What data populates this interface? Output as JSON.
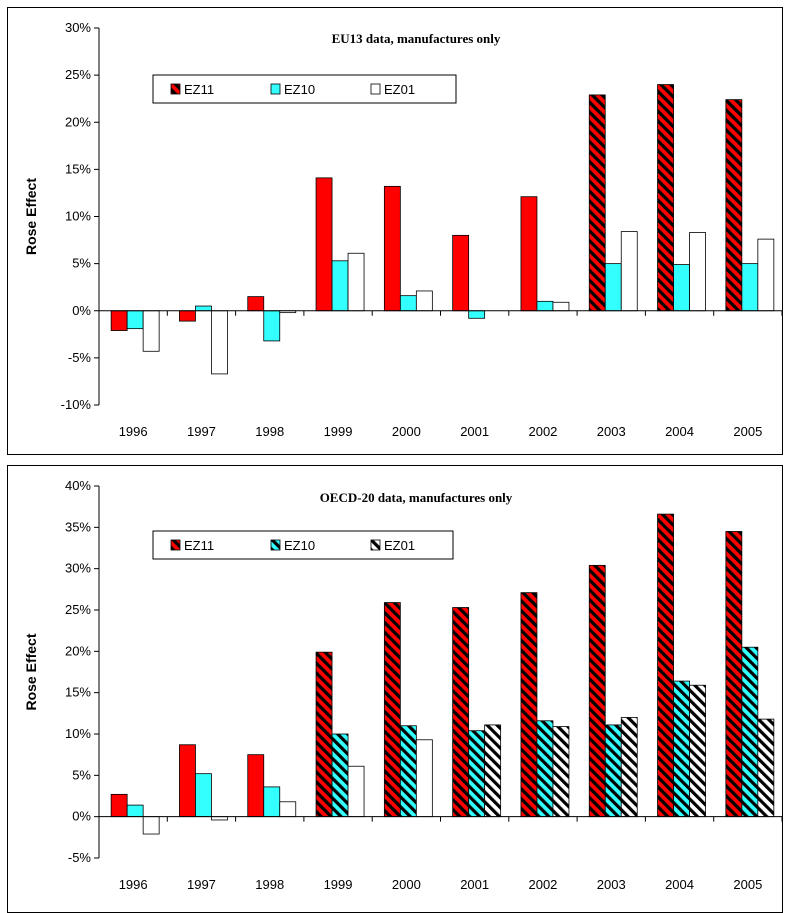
{
  "chart_data": [
    {
      "type": "bar",
      "title": "EU13 data, manufactures only",
      "xlabel": "",
      "ylabel": "Rose Effect",
      "ylim": [
        -10,
        30
      ],
      "yticks": [
        "-10%",
        "-5%",
        "0%",
        "5%",
        "10%",
        "15%",
        "20%",
        "25%",
        "30%"
      ],
      "categories": [
        "1996",
        "1997",
        "1998",
        "1999",
        "2000",
        "2001",
        "2002",
        "2003",
        "2004",
        "2005"
      ],
      "series": [
        {
          "name": "EZ11",
          "values": [
            -2.1,
            -1.1,
            1.5,
            14.1,
            13.2,
            8.0,
            12.1,
            22.9,
            24.0,
            22.4
          ],
          "hatched": [
            false,
            false,
            false,
            false,
            false,
            false,
            false,
            true,
            true,
            true
          ]
        },
        {
          "name": "EZ10",
          "values": [
            -1.9,
            0.5,
            -3.2,
            5.3,
            1.6,
            -0.8,
            1.0,
            5.0,
            4.9,
            5.0
          ],
          "hatched": [
            false,
            false,
            false,
            false,
            false,
            false,
            false,
            false,
            false,
            false
          ]
        },
        {
          "name": "EZ01",
          "values": [
            -4.3,
            -6.7,
            -0.2,
            6.1,
            2.1,
            0.0,
            0.9,
            8.4,
            8.3,
            7.6
          ],
          "hatched": [
            false,
            false,
            false,
            false,
            false,
            false,
            false,
            false,
            false,
            false
          ]
        }
      ],
      "legend": {
        "position": "top-left"
      },
      "grid": false
    },
    {
      "type": "bar",
      "title": "OECD-20 data, manufactures only",
      "xlabel": "",
      "ylabel": "Rose Effect",
      "ylim": [
        -5,
        40
      ],
      "yticks": [
        "-5%",
        "0%",
        "5%",
        "10%",
        "15%",
        "20%",
        "25%",
        "30%",
        "35%",
        "40%"
      ],
      "categories": [
        "1996",
        "1997",
        "1998",
        "1999",
        "2000",
        "2001",
        "2002",
        "2003",
        "2004",
        "2005"
      ],
      "series": [
        {
          "name": "EZ11",
          "values": [
            2.7,
            8.7,
            7.5,
            19.9,
            25.9,
            25.3,
            27.1,
            30.4,
            36.6,
            34.5
          ],
          "hatched": [
            false,
            false,
            false,
            true,
            true,
            true,
            true,
            true,
            true,
            true
          ]
        },
        {
          "name": "EZ10",
          "values": [
            1.4,
            5.2,
            3.6,
            10.0,
            11.0,
            10.4,
            11.6,
            11.1,
            16.4,
            20.5
          ],
          "hatched": [
            false,
            false,
            false,
            true,
            true,
            true,
            true,
            true,
            true,
            true
          ]
        },
        {
          "name": "EZ01",
          "values": [
            -2.1,
            -0.4,
            1.8,
            6.1,
            9.3,
            11.1,
            10.9,
            12.0,
            15.9,
            11.8
          ],
          "hatched": [
            false,
            false,
            false,
            false,
            false,
            true,
            true,
            true,
            true,
            true
          ]
        }
      ],
      "legend": {
        "position": "top-left"
      },
      "grid": false
    }
  ],
  "colors": {
    "EZ11": "#ff0000",
    "EZ10": "#33ffff",
    "EZ01": "#ffffff",
    "hatch_line": "#000000"
  }
}
